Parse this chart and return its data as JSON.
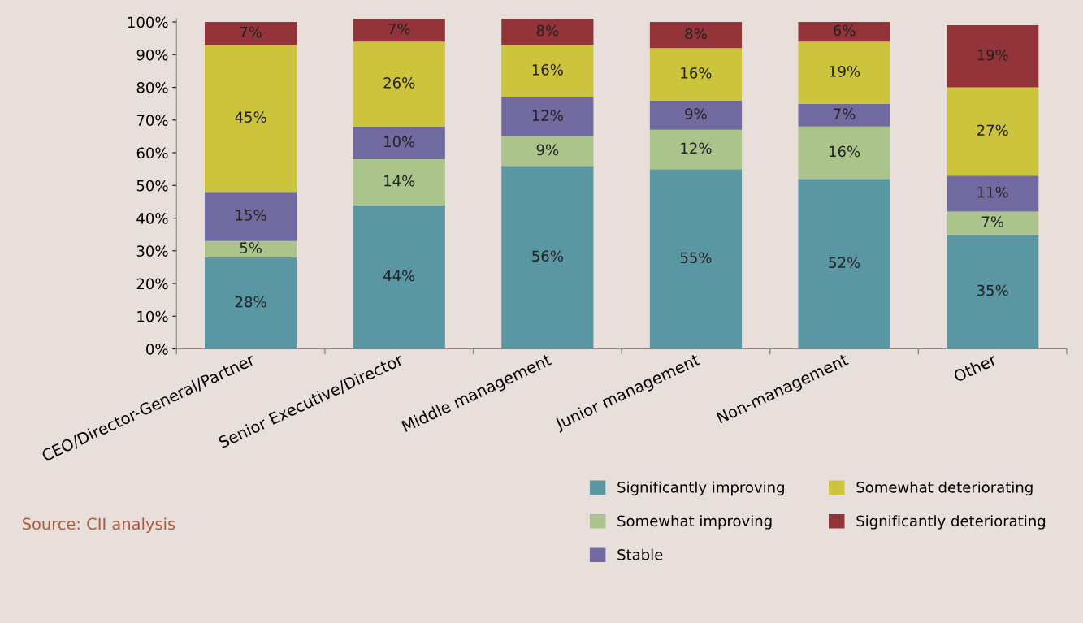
{
  "chart_data": {
    "type": "bar",
    "stacked": true,
    "categories": [
      "CEO/Director-General/Partner",
      "Senior Executive/Director",
      "Middle management",
      "Junior management",
      "Non-management",
      "Other"
    ],
    "series": [
      {
        "name": "Significantly improving",
        "color": "#5b96a3",
        "values": [
          28,
          44,
          56,
          55,
          52,
          35
        ],
        "value_labels": [
          "28%",
          "44%",
          "56%",
          "55%",
          "52%",
          "35%"
        ]
      },
      {
        "name": "Somewhat improving",
        "color": "#aac48c",
        "values": [
          5,
          14,
          9,
          12,
          16,
          7
        ],
        "value_labels": [
          "5%",
          "14%",
          "9%",
          "12%",
          "16%",
          "7%"
        ]
      },
      {
        "name": "Stable",
        "color": "#716aa0",
        "values": [
          15,
          10,
          12,
          9,
          7,
          11
        ],
        "value_labels": [
          "15%",
          "10%",
          "12%",
          "9%",
          "7%",
          "11%"
        ]
      },
      {
        "name": "Somewhat deteriorating",
        "color": "#cdc43d",
        "values": [
          45,
          26,
          16,
          16,
          19,
          27
        ],
        "value_labels": [
          "45%",
          "26%",
          "16%",
          "16%",
          "19%",
          "27%"
        ]
      },
      {
        "name": "Significantly deteriorating",
        "color": "#93333a",
        "values": [
          7,
          7,
          8,
          8,
          6,
          19
        ],
        "value_labels": [
          "7%",
          "7%",
          "8%",
          "8%",
          "6%",
          "19%"
        ]
      }
    ],
    "ylim": [
      0,
      101
    ],
    "yticks": [
      {
        "value": 0,
        "label": "0%"
      },
      {
        "value": 10,
        "label": "10%"
      },
      {
        "value": 20,
        "label": "20%"
      },
      {
        "value": 30,
        "label": "30%"
      },
      {
        "value": 40,
        "label": "40%"
      },
      {
        "value": 50,
        "label": "50%"
      },
      {
        "value": 60,
        "label": "60%"
      },
      {
        "value": 70,
        "label": "70%"
      },
      {
        "value": 80,
        "label": "80%"
      },
      {
        "value": 90,
        "label": "90%"
      },
      {
        "value": 100,
        "label": "100%"
      }
    ],
    "grid": false,
    "legend": "bottom",
    "annotations": [
      "Source: CII analysis"
    ]
  }
}
